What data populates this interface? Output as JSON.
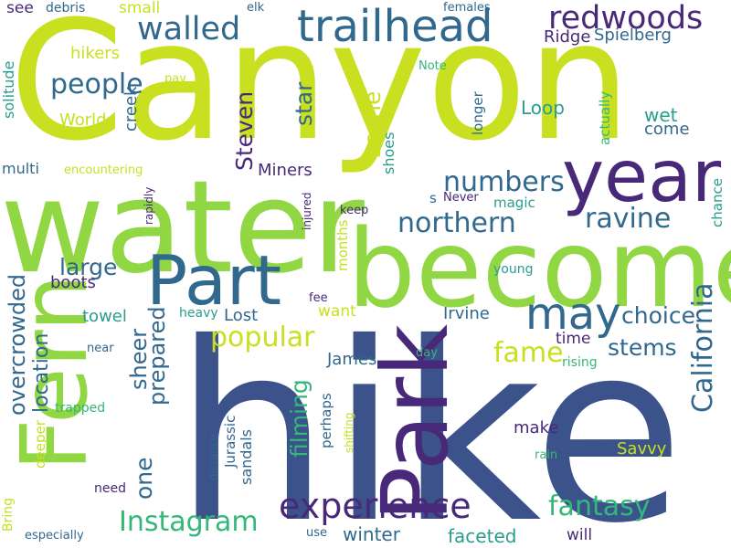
{
  "cloud": {
    "colors": {
      "lime": "#c8e020",
      "green": "#90d743",
      "teal": "#21918c",
      "blue": "#3b528b",
      "purple": "#482878",
      "sea": "#35b779",
      "aqua": "#2a9d8f",
      "navy": "#31688e"
    },
    "words": [
      {
        "text": "Canyon",
        "color": "lime"
      },
      {
        "text": "hike",
        "color": "blue"
      },
      {
        "text": "water",
        "color": "green"
      },
      {
        "text": "become",
        "color": "green"
      },
      {
        "text": "year",
        "color": "purple"
      },
      {
        "text": "Part",
        "color": "navy"
      },
      {
        "text": "Fern",
        "color": "green"
      },
      {
        "text": "Park",
        "color": "purple"
      },
      {
        "text": "trailhead",
        "color": "navy"
      },
      {
        "text": "experience",
        "color": "purple"
      },
      {
        "text": "redwoods",
        "color": "purple"
      },
      {
        "text": "walled",
        "color": "navy"
      },
      {
        "text": "may",
        "color": "navy"
      },
      {
        "text": "California",
        "color": "navy"
      },
      {
        "text": "northern",
        "color": "navy"
      },
      {
        "text": "ravine",
        "color": "navy"
      },
      {
        "text": "fantasy",
        "color": "sea"
      },
      {
        "text": "Instagram",
        "color": "sea"
      },
      {
        "text": "overcrowded",
        "color": "navy"
      },
      {
        "text": "popular",
        "color": "lime"
      },
      {
        "text": "sheer",
        "color": "navy"
      },
      {
        "text": "people",
        "color": "navy"
      },
      {
        "text": "numbers",
        "color": "navy"
      },
      {
        "text": "choice",
        "color": "navy"
      },
      {
        "text": "stems",
        "color": "navy"
      },
      {
        "text": "Steven",
        "color": "purple"
      },
      {
        "text": "star",
        "color": "navy"
      },
      {
        "text": "scene",
        "color": "lime"
      },
      {
        "text": "location",
        "color": "navy"
      },
      {
        "text": "fame",
        "color": "lime"
      },
      {
        "text": "one",
        "color": "navy"
      },
      {
        "text": "prepared",
        "color": "navy"
      },
      {
        "text": "filming",
        "color": "sea"
      },
      {
        "text": "large",
        "color": "navy"
      },
      {
        "text": "Miners",
        "color": "purple"
      },
      {
        "text": "Spielberg",
        "color": "navy"
      },
      {
        "text": "Ridge",
        "color": "purple"
      },
      {
        "text": "faceted",
        "color": "aqua"
      },
      {
        "text": "winter",
        "color": "navy"
      },
      {
        "text": "Savvy",
        "color": "lime"
      },
      {
        "text": "Loop",
        "color": "aqua"
      },
      {
        "text": "wet",
        "color": "aqua"
      },
      {
        "text": "come",
        "color": "navy"
      },
      {
        "text": "hikers",
        "color": "lime"
      },
      {
        "text": "World",
        "color": "lime"
      },
      {
        "text": "boots",
        "color": "purple"
      },
      {
        "text": "towel",
        "color": "aqua"
      },
      {
        "text": "Lost",
        "color": "navy"
      },
      {
        "text": "Irvine",
        "color": "navy"
      },
      {
        "text": "James",
        "color": "navy"
      },
      {
        "text": "make",
        "color": "purple"
      },
      {
        "text": "time",
        "color": "purple"
      },
      {
        "text": "will",
        "color": "purple"
      },
      {
        "text": "want",
        "color": "lime"
      },
      {
        "text": "magic",
        "color": "aqua"
      },
      {
        "text": "shoes",
        "color": "aqua"
      },
      {
        "text": "small",
        "color": "lime"
      },
      {
        "text": "see",
        "color": "purple"
      },
      {
        "text": "creek",
        "color": "navy"
      },
      {
        "text": "multi",
        "color": "navy"
      },
      {
        "text": "solitude",
        "color": "aqua"
      },
      {
        "text": "actually",
        "color": "sea"
      },
      {
        "text": "longer",
        "color": "navy"
      },
      {
        "text": "chance",
        "color": "aqua"
      },
      {
        "text": "Jurassic",
        "color": "navy"
      },
      {
        "text": "sandals",
        "color": "navy"
      },
      {
        "text": "perhaps",
        "color": "navy"
      },
      {
        "text": "months",
        "color": "lime"
      },
      {
        "text": "deeper",
        "color": "lime"
      },
      {
        "text": "encountering",
        "color": "lime"
      },
      {
        "text": "debris",
        "color": "navy"
      },
      {
        "text": "elk",
        "color": "navy"
      },
      {
        "text": "females",
        "color": "navy"
      },
      {
        "text": "pay",
        "color": "lime"
      },
      {
        "text": "Note",
        "color": "sea"
      },
      {
        "text": "Never",
        "color": "purple"
      },
      {
        "text": "s",
        "color": "navy"
      },
      {
        "text": "keep",
        "color": "purple"
      },
      {
        "text": "young",
        "color": "aqua"
      },
      {
        "text": "fee",
        "color": "purple"
      },
      {
        "text": "heavy",
        "color": "aqua"
      },
      {
        "text": "injured",
        "color": "purple"
      },
      {
        "text": "rapidly",
        "color": "purple"
      },
      {
        "text": "near",
        "color": "navy"
      },
      {
        "text": "day",
        "color": "sea"
      },
      {
        "text": "rising",
        "color": "sea"
      },
      {
        "text": "trapped",
        "color": "sea"
      },
      {
        "text": "rain",
        "color": "sea"
      },
      {
        "text": "distance",
        "color": "navy"
      },
      {
        "text": "shifting",
        "color": "lime"
      },
      {
        "text": "need",
        "color": "purple"
      },
      {
        "text": "use",
        "color": "navy"
      },
      {
        "text": "especially",
        "color": "navy"
      },
      {
        "text": "Bring",
        "color": "lime"
      }
    ]
  }
}
